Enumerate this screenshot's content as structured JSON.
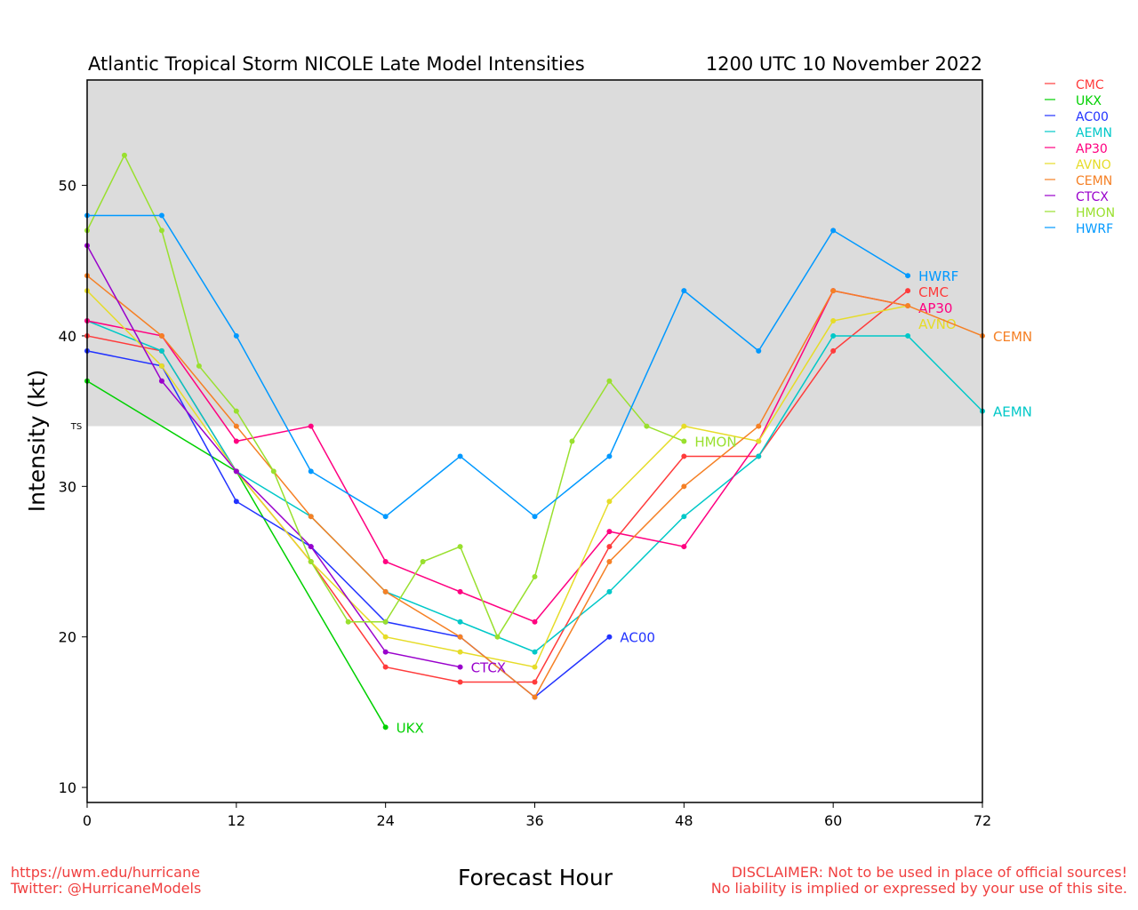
{
  "chart_data": {
    "type": "line",
    "title": "Atlantic Tropical Storm NICOLE Late Model Intensities",
    "subtitle": "1200 UTC 10 November 2022",
    "xlabel": "Forecast Hour",
    "ylabel": "Intensity (kt)",
    "xlim": [
      0,
      72
    ],
    "ylim": [
      9,
      57
    ],
    "xticks": [
      0,
      12,
      24,
      36,
      48,
      60,
      72
    ],
    "yticks": [
      10,
      20,
      30,
      40,
      50
    ],
    "threshold": {
      "label": "TS",
      "value": 34
    },
    "legend_position": "right-top",
    "series": [
      {
        "name": "CMC",
        "color": "#ff3b3b",
        "x": [
          0,
          6,
          12,
          18,
          24,
          30,
          36,
          42,
          48,
          54,
          60,
          66
        ],
        "y": [
          40,
          39,
          31,
          25,
          18,
          17,
          17,
          26,
          32,
          32,
          39,
          43
        ]
      },
      {
        "name": "UKX",
        "color": "#00d000",
        "x": [
          0,
          12,
          24
        ],
        "y": [
          37,
          31,
          14
        ]
      },
      {
        "name": "AC00",
        "color": "#2233ff",
        "x": [
          0,
          6,
          12,
          18,
          24,
          30,
          36,
          42
        ],
        "y": [
          39,
          38,
          29,
          26,
          21,
          20,
          16,
          20
        ]
      },
      {
        "name": "AEMN",
        "color": "#00c8c8",
        "x": [
          0,
          6,
          12,
          18,
          24,
          30,
          36,
          42,
          48,
          54,
          60,
          66,
          72
        ],
        "y": [
          41,
          39,
          31,
          28,
          23,
          21,
          19,
          23,
          28,
          32,
          40,
          40,
          35
        ]
      },
      {
        "name": "AP30",
        "color": "#ff0080",
        "x": [
          0,
          6,
          12,
          18,
          24,
          30,
          36,
          42,
          48,
          54,
          60,
          66
        ],
        "y": [
          41,
          40,
          33,
          34,
          25,
          23,
          21,
          27,
          26,
          33,
          43,
          42
        ]
      },
      {
        "name": "AVNO",
        "color": "#e6dc28",
        "x": [
          0,
          6,
          12,
          18,
          24,
          30,
          36,
          42,
          48,
          54,
          60,
          66
        ],
        "y": [
          43,
          38,
          31,
          25,
          20,
          19,
          18,
          29,
          34,
          33,
          41,
          42
        ]
      },
      {
        "name": "CEMN",
        "color": "#f58025",
        "x": [
          0,
          6,
          12,
          18,
          24,
          30,
          36,
          42,
          48,
          54,
          60,
          66,
          72
        ],
        "y": [
          44,
          40,
          34,
          28,
          23,
          20,
          16,
          25,
          30,
          34,
          43,
          42,
          40
        ]
      },
      {
        "name": "CTCX",
        "color": "#9900cc",
        "x": [
          0,
          6,
          12,
          18,
          24,
          30
        ],
        "y": [
          46,
          37,
          31,
          26,
          19,
          18
        ]
      },
      {
        "name": "HMON",
        "color": "#99e02e",
        "x": [
          0,
          3,
          6,
          9,
          12,
          15,
          18,
          21,
          24,
          27,
          30,
          33,
          36,
          39,
          42,
          45,
          48
        ],
        "y": [
          47,
          52,
          47,
          38,
          35,
          31,
          25,
          21,
          21,
          25,
          26,
          20,
          24,
          33,
          37,
          34,
          33
        ]
      },
      {
        "name": "HWRF",
        "color": "#0099ff",
        "x": [
          0,
          6,
          12,
          18,
          24,
          30,
          36,
          42,
          48,
          54,
          60,
          66
        ],
        "y": [
          48,
          48,
          40,
          31,
          28,
          32,
          28,
          32,
          43,
          39,
          47,
          44
        ]
      }
    ]
  },
  "footer": {
    "url": "https://uwm.edu/hurricane",
    "twitter": "Twitter: @HurricaneModels",
    "disclaimer1": "DISCLAIMER: Not to be used in place of official sources!",
    "disclaimer2": "No liability is implied or expressed by your use of this site."
  }
}
